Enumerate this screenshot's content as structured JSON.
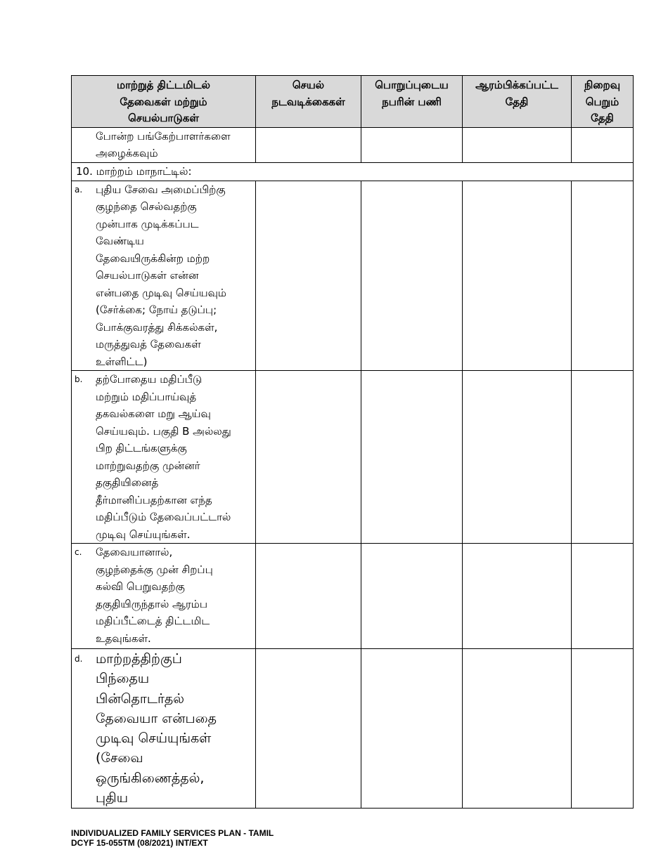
{
  "table": {
    "headers": [
      "மாற்றுத் திட்டமிடல்\nதேவைகள் மற்றும்\nசெயல்பாடுகள்",
      "செயல்\nநடவடிக்கைகள்",
      "பொறுப்புடைய\nநபரின் பணி",
      "ஆரம்பிக்கப்பட்ட\nதேதி",
      "நிறைவு\nபெறும்\nதேதி"
    ],
    "continued_row": "போன்ற பங்கேற்பாளர்களை\nஅழைக்கவும்",
    "section_10": "10.  மாற்றம் மாநாட்டில்:",
    "items": [
      {
        "label": "a.",
        "text": "புதிய சேவை அமைப்பிற்கு\nகுழந்தை செல்வதற்கு\nமுன்பாக முடிக்கப்பட\nவேண்டிய\nதேவையிருக்கின்ற மற்ற\nசெயல்பாடுகள் என்ன\nஎன்பதை முடிவு செய்யவும்\n(சேர்க்கை; நோய் தடுப்பு;\nபோக்குவரத்து சிக்கல்கள்,\nமருத்துவத் தேவைகள்\nஉள்ளிட்ட)"
      },
      {
        "label": "b.",
        "text": "தற்போதைய மதிப்பீடு\nமற்றும் மதிப்பாய்வுத்\nதகவல்களை மறு ஆய்வு\nசெய்யவும். பகுதி B அல்லது\nபிற திட்டங்களுக்கு\nமாற்றுவதற்கு முன்னர்\nதகுதியினைத்\nதீர்மானிப்பதற்கான எந்த\nமதிப்பீடும் தேவைப்பட்டால்\nமுடிவு செய்யுங்கள்."
      },
      {
        "label": "c.",
        "text": "தேவையானால்,\nகுழந்தைக்கு முன் சிறப்பு\nகல்வி பெறுவதற்கு\nதகுதியிருந்தால் ஆரம்ப\nமதிப்பீட்டைத் திட்டமிட\nஉதவுங்கள்."
      },
      {
        "label": "d.",
        "text": "மாற்றத்திற்குப்\nபிந்தைய\nபின்தொடர்தல்\nதேவையா என்பதை\nமுடிவு செய்யுங்கள்\n(சேவை\nஒருங்கிணைத்தல்,\nபுதிய"
      }
    ]
  },
  "footer": {
    "line1": "INDIVIDUALIZED FAMILY SERVICES PLAN - TAMIL",
    "line2": "DCYF 15-055TM (08/2021) INT/EXT"
  }
}
